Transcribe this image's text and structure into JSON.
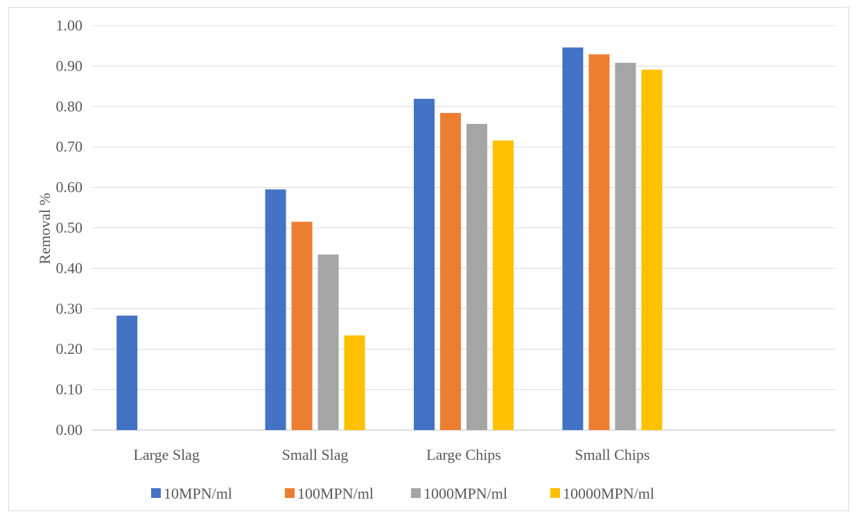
{
  "chart_data": {
    "type": "bar",
    "title": "",
    "xlabel": "",
    "ylabel": "Removal %",
    "ylim": [
      0,
      1
    ],
    "yticks": [
      "0.00",
      "0.10",
      "0.20",
      "0.30",
      "0.40",
      "0.50",
      "0.60",
      "0.70",
      "0.80",
      "0.90",
      "1.00"
    ],
    "categories": [
      "Large Slag",
      "Small Slag",
      "Large Chips",
      "Small Chips"
    ],
    "series": [
      {
        "name": "10MPN/ml",
        "color": "#4472c4",
        "values": [
          0.283,
          0.595,
          0.819,
          0.946
        ]
      },
      {
        "name": "100MPN/ml",
        "color": "#ed7d31",
        "values": [
          0,
          0.515,
          0.784,
          0.929
        ]
      },
      {
        "name": "1000MPN/ml",
        "color": "#a5a5a5",
        "values": [
          0,
          0.434,
          0.757,
          0.908
        ]
      },
      {
        "name": "10000MPN/ml",
        "color": "#ffc000",
        "values": [
          0,
          0.234,
          0.716,
          0.891
        ]
      }
    ],
    "grid": true,
    "legend": "bottom"
  }
}
